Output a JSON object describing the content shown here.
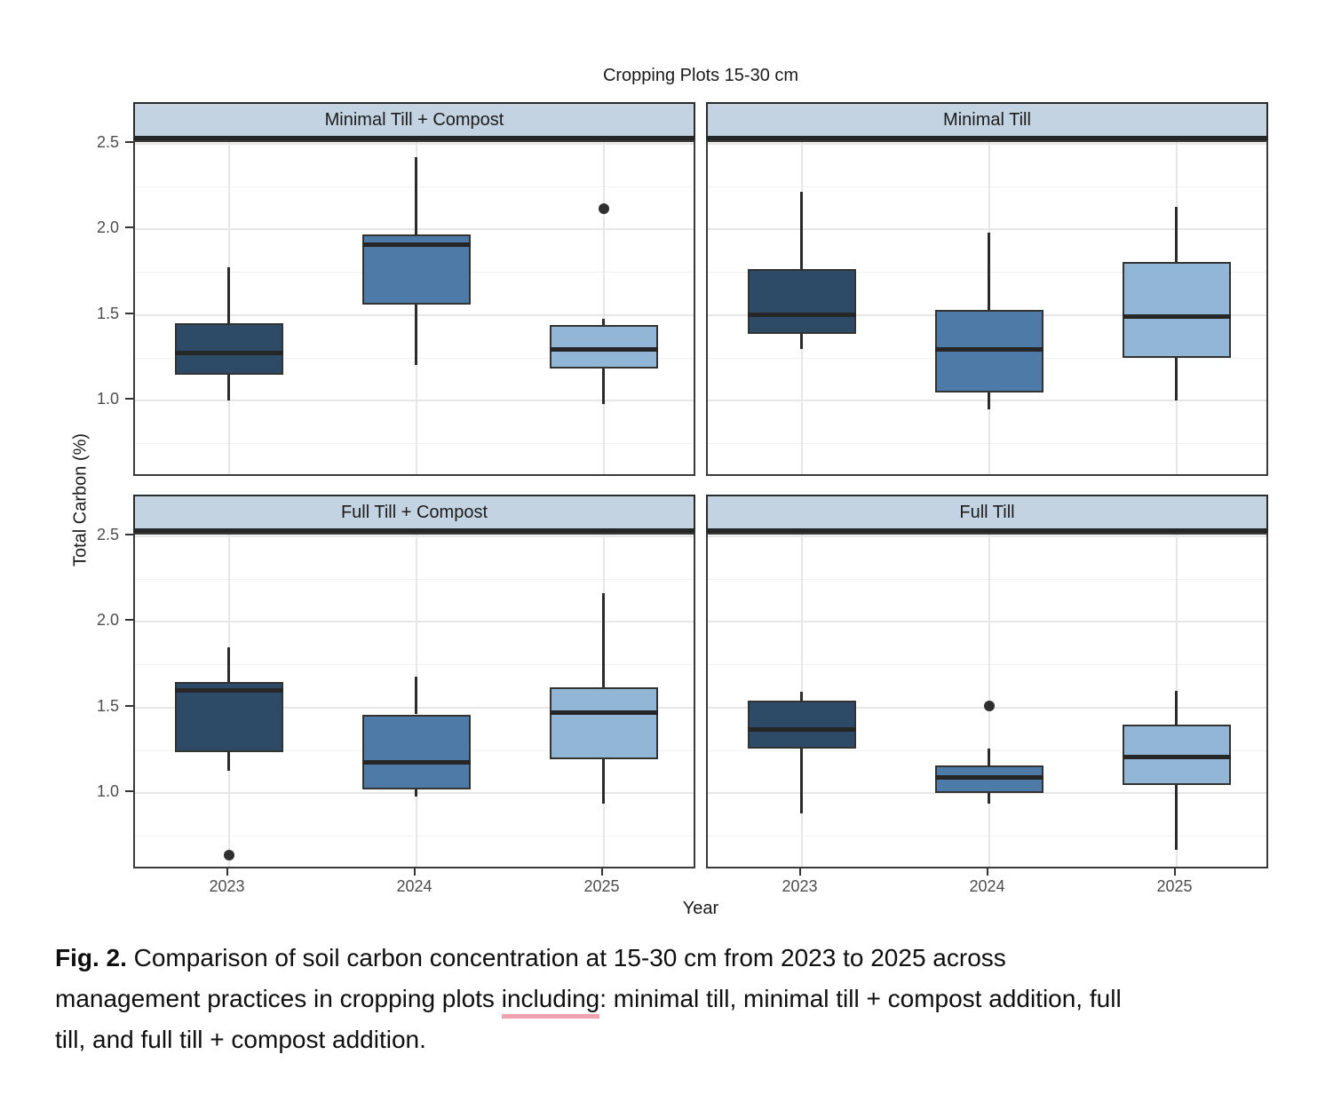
{
  "page": {
    "background": "#ffffff"
  },
  "chart_data": {
    "type": "boxplot",
    "title": "Cropping Plots 15-30 cm",
    "xlabel": "Year",
    "ylabel": "Total Carbon (%)",
    "ylim": [
      0.55,
      2.51
    ],
    "ytick_labels": [
      "2.5",
      "2.0",
      "1.5",
      "1.0"
    ],
    "ytick_values": [
      2.5,
      2.0,
      1.5,
      1.0
    ],
    "grid": {
      "major": [
        2.5,
        2.0,
        1.5,
        1.0
      ],
      "minor": [
        2.25,
        1.75,
        1.25,
        0.75
      ],
      "vertical_at_categories": true
    },
    "categories": [
      "2023",
      "2024",
      "2025"
    ],
    "legend": "none",
    "facet_layout": "2x2",
    "facets": [
      {
        "label": "Minimal Till + Compost",
        "position": "top-left",
        "boxes": [
          {
            "category": "2023",
            "whisker_low": 1.0,
            "q1": 1.15,
            "median": 1.28,
            "q3": 1.45,
            "whisker_high": 1.78,
            "outliers": []
          },
          {
            "category": "2024",
            "whisker_low": 1.21,
            "q1": 1.56,
            "median": 1.91,
            "q3": 1.97,
            "whisker_high": 2.42,
            "outliers": []
          },
          {
            "category": "2025",
            "whisker_low": 0.98,
            "q1": 1.19,
            "median": 1.3,
            "q3": 1.44,
            "whisker_high": 1.48,
            "outliers": [
              2.12
            ]
          }
        ]
      },
      {
        "label": "Minimal Till",
        "position": "top-right",
        "boxes": [
          {
            "category": "2023",
            "whisker_low": 1.3,
            "q1": 1.39,
            "median": 1.5,
            "q3": 1.77,
            "whisker_high": 2.22,
            "outliers": []
          },
          {
            "category": "2024",
            "whisker_low": 0.95,
            "q1": 1.05,
            "median": 1.3,
            "q3": 1.53,
            "whisker_high": 1.98,
            "outliers": []
          },
          {
            "category": "2025",
            "whisker_low": 1.0,
            "q1": 1.25,
            "median": 1.49,
            "q3": 1.81,
            "whisker_high": 2.13,
            "outliers": []
          }
        ]
      },
      {
        "label": "Full Till + Compost",
        "position": "bottom-left",
        "boxes": [
          {
            "category": "2023",
            "whisker_low": 1.13,
            "q1": 1.24,
            "median": 1.6,
            "q3": 1.65,
            "whisker_high": 1.85,
            "outliers": [
              0.64
            ]
          },
          {
            "category": "2024",
            "whisker_low": 0.98,
            "q1": 1.02,
            "median": 1.18,
            "q3": 1.46,
            "whisker_high": 1.68,
            "outliers": []
          },
          {
            "category": "2025",
            "whisker_low": 0.94,
            "q1": 1.2,
            "median": 1.47,
            "q3": 1.62,
            "whisker_high": 2.17,
            "outliers": []
          }
        ]
      },
      {
        "label": "Full Till",
        "position": "bottom-right",
        "boxes": [
          {
            "category": "2023",
            "whisker_low": 0.88,
            "q1": 1.26,
            "median": 1.37,
            "q3": 1.54,
            "whisker_high": 1.59,
            "outliers": []
          },
          {
            "category": "2024",
            "whisker_low": 0.94,
            "q1": 1.0,
            "median": 1.09,
            "q3": 1.16,
            "whisker_high": 1.26,
            "outliers": [
              1.51
            ]
          },
          {
            "category": "2025",
            "whisker_low": 0.67,
            "q1": 1.05,
            "median": 1.21,
            "q3": 1.4,
            "whisker_high": 1.6,
            "outliers": []
          }
        ]
      }
    ],
    "colors": {
      "box_2023": "#2d4a66",
      "box_2024": "#4e7aa8",
      "box_2025": "#92b7d6",
      "strip_background": "#c3d3e2",
      "box_outline": "#333333",
      "median_whisker": "#262626",
      "grid_major": "#e7e7e7",
      "grid_minor": "#f2f2f2",
      "axis_text": "#4d4d4d"
    }
  },
  "caption": {
    "fig_label": "Fig. 2.",
    "line1_rest": " Comparison of soil carbon concentration at 15-30 cm from 2023 to 2025 across",
    "line2_before": "management practices in cropping plots ",
    "line2_word": "including",
    "line2_after": ": minimal till, minimal till + compost addition, full",
    "line3": "till, and full till + compost addition.",
    "underline_color": "#f1a1ad",
    "full_text": "Fig. 2. Comparison of soil carbon concentration at 15-30 cm from 2023 to 2025 across management practices in cropping plots including: minimal till, minimal till + compost addition, full till, and full till + compost addition."
  }
}
